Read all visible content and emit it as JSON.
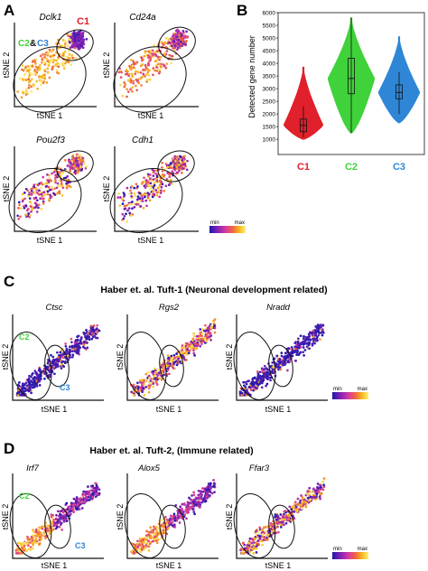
{
  "panels": {
    "A": {
      "letter": "A",
      "subplots": [
        {
          "gene": "Dclk1",
          "xlabel": "tSNE 1",
          "ylabel": "tSNE 2",
          "annotations": [
            "C1",
            "C2",
            "&",
            "C3"
          ]
        },
        {
          "gene": "Cd24a",
          "xlabel": "tSNE 1",
          "ylabel": "tSNE 2"
        },
        {
          "gene": "Pou2f3",
          "xlabel": "tSNE 1",
          "ylabel": "tSNE 2"
        },
        {
          "gene": "Cdh1",
          "xlabel": "tSNE 1",
          "ylabel": "tSNE 2"
        }
      ],
      "colorbar": {
        "min_label": "min",
        "max_label": "max"
      }
    },
    "B": {
      "letter": "B"
    },
    "C": {
      "letter": "C",
      "title": "Haber et. al. Tuft-1 (Neuronal development related)",
      "subplots": [
        {
          "gene": "Ctsc",
          "xlabel": "tSNE 1",
          "ylabel": "tSNE 2",
          "annotations": [
            "C2",
            "C3"
          ]
        },
        {
          "gene": "Rgs2",
          "xlabel": "tSNE 1",
          "ylabel": "tSNE 2"
        },
        {
          "gene": "Nradd",
          "xlabel": "tSNE 1",
          "ylabel": "tSNE 2"
        }
      ],
      "colorbar": {
        "min_label": "min",
        "max_label": "max"
      }
    },
    "D": {
      "letter": "D",
      "title": "Haber et. al. Tuft-2, (Immune related)",
      "subplots": [
        {
          "gene": "Irf7",
          "xlabel": "tSNE 1",
          "ylabel": "tSNE 2",
          "annotations": [
            "C2",
            "C3"
          ]
        },
        {
          "gene": "Alox5",
          "xlabel": "tSNE 1",
          "ylabel": "tSNE 2"
        },
        {
          "gene": "Ffar3",
          "xlabel": "tSNE 1",
          "ylabel": "tSNE 2"
        }
      ],
      "colorbar": {
        "min_label": "min",
        "max_label": "max"
      }
    }
  },
  "colors": {
    "C1": "#e0202a",
    "C2": "#3fd23a",
    "C3": "#2f86d6",
    "colormap": [
      "#1a1aa8",
      "#7b1fb8",
      "#d63aa0",
      "#f06a3c",
      "#f7c21c",
      "#ffee88"
    ]
  },
  "chart_data": [
    {
      "type": "scatter",
      "panel": "A",
      "gene": "Dclk1",
      "xlabel": "tSNE 1",
      "ylabel": "tSNE 2"
    },
    {
      "type": "scatter",
      "panel": "A",
      "gene": "Cd24a",
      "xlabel": "tSNE 1",
      "ylabel": "tSNE 2"
    },
    {
      "type": "scatter",
      "panel": "A",
      "gene": "Pou2f3",
      "xlabel": "tSNE 1",
      "ylabel": "tSNE 2"
    },
    {
      "type": "scatter",
      "panel": "A",
      "gene": "Cdh1",
      "xlabel": "tSNE 1",
      "ylabel": "tSNE 2"
    },
    {
      "type": "violin",
      "panel": "B",
      "ylabel": "Detected gene number",
      "ylim": [
        0,
        6000
      ],
      "yticks": [
        0,
        1000,
        1500,
        2000,
        2500,
        3000,
        3500,
        4000,
        4500,
        5000,
        5500,
        6000
      ],
      "categories": [
        "C1",
        "C2",
        "C3"
      ],
      "series": [
        {
          "name": "C1",
          "color": "#e0202a",
          "min": 1000,
          "max": 3850,
          "q1": 1300,
          "median": 1550,
          "q3": 1800,
          "whisker_low": 1080,
          "whisker_high": 2300
        },
        {
          "name": "C2",
          "color": "#3fd23a",
          "min": 1250,
          "max": 5800,
          "q1": 2800,
          "median": 3400,
          "q3": 4200,
          "whisker_low": 1250,
          "whisker_high": 5800
        },
        {
          "name": "C3",
          "color": "#2f86d6",
          "min": 1650,
          "max": 5050,
          "q1": 2600,
          "median": 2850,
          "q3": 3150,
          "whisker_low": 2000,
          "whisker_high": 3650
        }
      ]
    },
    {
      "type": "scatter",
      "panel": "C",
      "gene": "Ctsc",
      "xlabel": "tSNE 1",
      "ylabel": "tSNE 2"
    },
    {
      "type": "scatter",
      "panel": "C",
      "gene": "Rgs2",
      "xlabel": "tSNE 1",
      "ylabel": "tSNE 2"
    },
    {
      "type": "scatter",
      "panel": "C",
      "gene": "Nradd",
      "xlabel": "tSNE 1",
      "ylabel": "tSNE 2"
    },
    {
      "type": "scatter",
      "panel": "D",
      "gene": "Irf7",
      "xlabel": "tSNE 1",
      "ylabel": "tSNE 2"
    },
    {
      "type": "scatter",
      "panel": "D",
      "gene": "Alox5",
      "xlabel": "tSNE 1",
      "ylabel": "tSNE 2"
    },
    {
      "type": "scatter",
      "panel": "D",
      "gene": "Ffar3",
      "xlabel": "tSNE 1",
      "ylabel": "tSNE 2"
    }
  ]
}
